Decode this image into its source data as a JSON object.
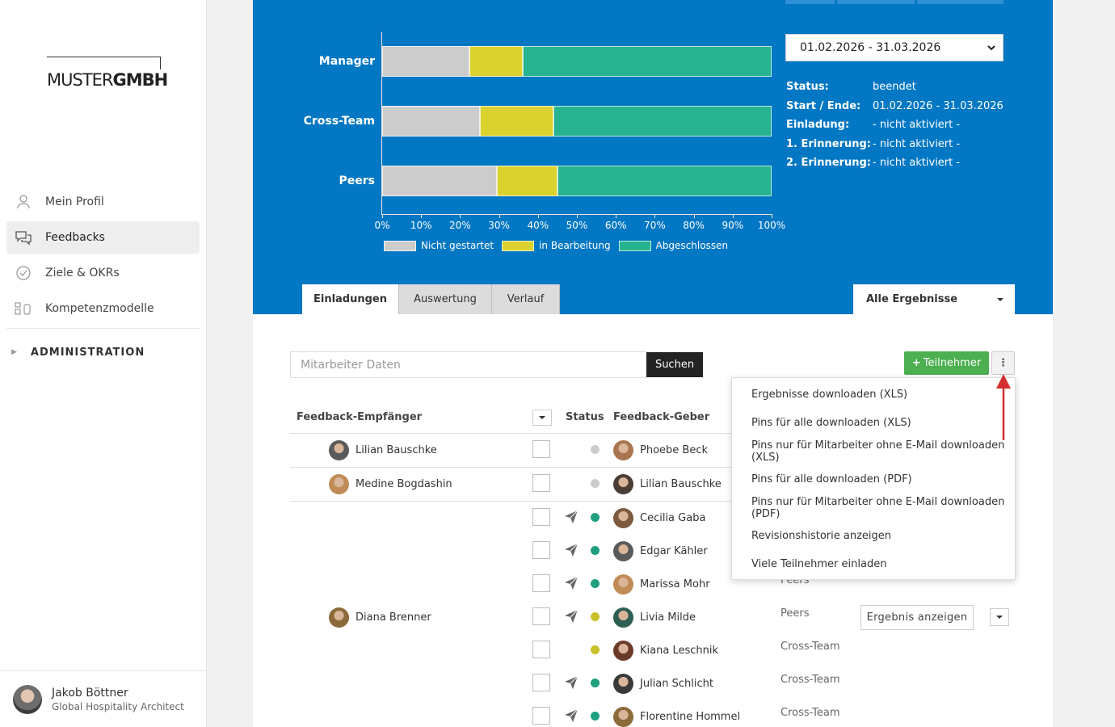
{
  "sidebar": {
    "logo_part1": "MUSTER",
    "logo_part2": "GMBH",
    "nav": [
      {
        "label": "Mein Profil"
      },
      {
        "label": "Feedbacks"
      },
      {
        "label": "Ziele & OKRs"
      },
      {
        "label": "Kompetenzmodelle"
      }
    ],
    "admin_label": "ADMINISTRATION",
    "user": {
      "name": "Jakob Böttner",
      "role": "Global Hospitality Architect"
    }
  },
  "chart_data": {
    "type": "bar",
    "orientation": "horizontal-stacked",
    "categories": [
      "Manager",
      "Cross-Team",
      "Peers"
    ],
    "series": [
      {
        "name": "Nicht gestartet",
        "color": "#cccccc",
        "values": [
          22.5,
          25,
          29.5
        ]
      },
      {
        "name": "in Bearbeitung",
        "color": "#dcd22f",
        "values": [
          13.5,
          19,
          15.5
        ]
      },
      {
        "name": "Abgeschlossen",
        "color": "#26b38f",
        "values": [
          64,
          56,
          55
        ]
      }
    ],
    "xticks": [
      "0%",
      "10%",
      "20%",
      "30%",
      "40%",
      "50%",
      "60%",
      "70%",
      "80%",
      "90%",
      "100%"
    ],
    "xlim": [
      0,
      100
    ],
    "legend": "bottom"
  },
  "period": {
    "selected": "01.02.2026 - 31.03.2026",
    "rows": [
      {
        "key": "Status:",
        "value": "beendet"
      },
      {
        "key": "Start / Ende:",
        "value": "01.02.2026 - 31.03.2026"
      },
      {
        "key": "Einladung:",
        "value": "- nicht aktiviert -"
      },
      {
        "key": "1. Erinnerung:",
        "value": "- nicht aktiviert -"
      },
      {
        "key": "2. Erinnerung:",
        "value": "- nicht aktiviert -"
      }
    ]
  },
  "tabs": [
    "Einladungen",
    "Auswertung",
    "Verlauf"
  ],
  "filter": "Alle Ergebnisse",
  "search": {
    "placeholder": "Mitarbeiter Daten",
    "button": "Suchen"
  },
  "add_button": "Teilnehmer",
  "table": {
    "headers": {
      "recipient": "Feedback-Empfänger",
      "status": "Status",
      "giver": "Feedback-Geber"
    },
    "rows": [
      {
        "recipient": "Lilian Bauschke",
        "giver": "Phoebe Beck",
        "sent": false,
        "status": "grey",
        "group": ""
      },
      {
        "recipient": "Medine Bogdashin",
        "giver": "Lilian Bauschke",
        "sent": false,
        "status": "grey",
        "group": ""
      },
      {
        "recipient": "",
        "giver": "Cecilia Gaba",
        "sent": true,
        "status": "green",
        "group": ""
      },
      {
        "recipient": "",
        "giver": "Edgar Kähler",
        "sent": true,
        "status": "green",
        "group": ""
      },
      {
        "recipient": "",
        "giver": "Marissa Mohr",
        "sent": true,
        "status": "green",
        "group": "Peers"
      },
      {
        "recipient": "Diana Brenner",
        "giver": "Livia Milde",
        "sent": true,
        "status": "yellow",
        "group": "Peers"
      },
      {
        "recipient": "",
        "giver": "Kiana Leschnik",
        "sent": false,
        "status": "yellow",
        "group": "Cross-Team"
      },
      {
        "recipient": "",
        "giver": "Julian Schlicht",
        "sent": true,
        "status": "green",
        "group": "Cross-Team"
      },
      {
        "recipient": "",
        "giver": "Florentine Hommel",
        "sent": true,
        "status": "green",
        "group": "Cross-Team"
      }
    ],
    "result_button": "Ergebnis anzeigen"
  },
  "menu": [
    "Ergebnisse downloaden (XLS)",
    "Pins für alle downloaden (XLS)",
    "Pins nur für Mitarbeiter ohne E-Mail downloaden (XLS)",
    "Pins für alle downloaden (PDF)",
    "Pins nur für Mitarbeiter ohne E-Mail downloaden (PDF)",
    "Revisionshistorie anzeigen",
    "Viele Teilnehmer einladen"
  ],
  "colors": {
    "hero": "#0277c3",
    "green_button": "#4caf50",
    "status_green": "#1f9f80",
    "status_yellow": "#c9c12a",
    "status_grey": "#cccccc"
  }
}
